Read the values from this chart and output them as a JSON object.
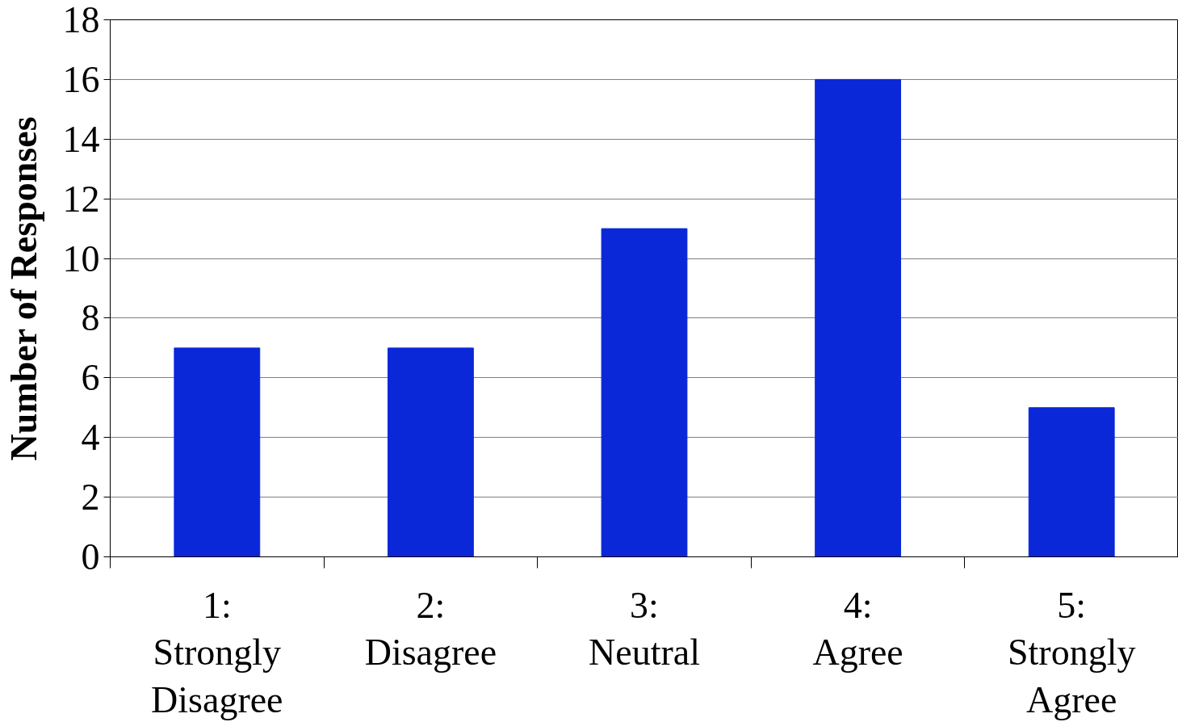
{
  "chart_data": {
    "type": "bar",
    "ylabel": "Number of Responses",
    "categories": [
      "1:\nStrongly\nDisagree",
      "2:\nDisagree",
      "3:\nNeutral",
      "4:\nAgree",
      "5:\nStrongly\nAgree"
    ],
    "values": [
      7,
      7,
      11,
      16,
      5
    ],
    "color": "#0a28d8",
    "ylim": [
      0,
      18
    ],
    "yticks": [
      0,
      2,
      4,
      6,
      8,
      10,
      12,
      14,
      16,
      18
    ],
    "grid": "y"
  }
}
